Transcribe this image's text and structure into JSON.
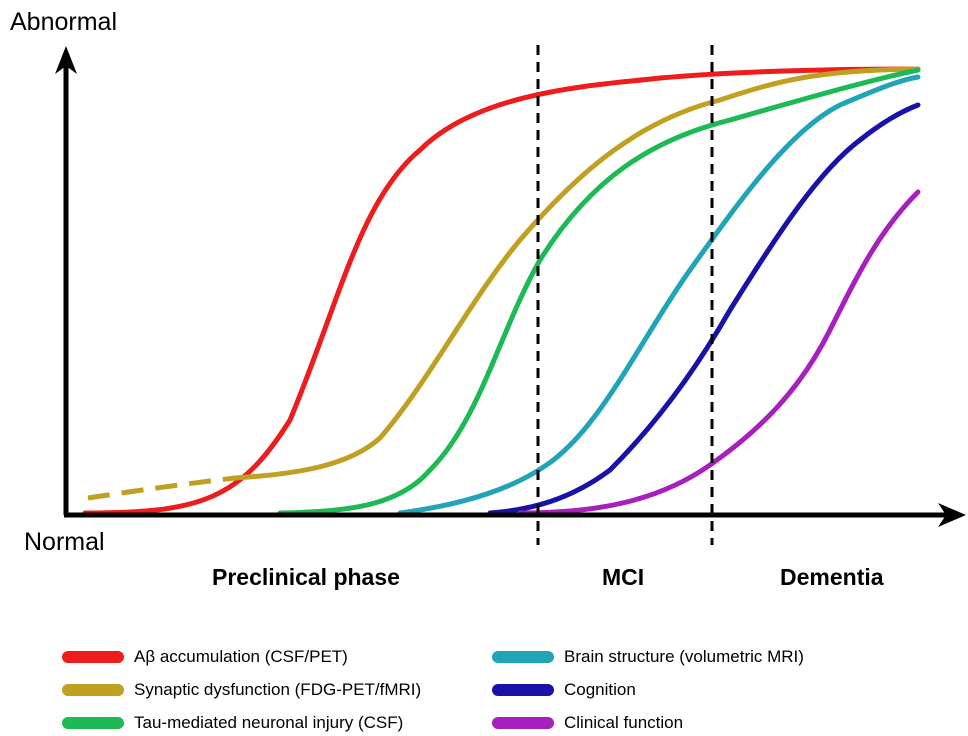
{
  "axis": {
    "y_top_label": "Abnormal",
    "y_bottom_label": "Normal"
  },
  "phases": [
    {
      "label": "Preclinical phase"
    },
    {
      "label": "MCI"
    },
    {
      "label": "Dementia"
    }
  ],
  "legend": [
    {
      "label": "Aβ accumulation (CSF/PET)",
      "color": "#ee1c1c"
    },
    {
      "label": "Synaptic dysfunction (FDG-PET/fMRI)",
      "color": "#c0a020"
    },
    {
      "label": "Tau-mediated neuronal injury (CSF)",
      "color": "#1db955"
    },
    {
      "label": "Brain structure (volumetric MRI)",
      "color": "#21a3b8"
    },
    {
      "label": "Cognition",
      "color": "#1a12a6"
    },
    {
      "label": "Clinical function",
      "color": "#a71fbd"
    }
  ]
}
